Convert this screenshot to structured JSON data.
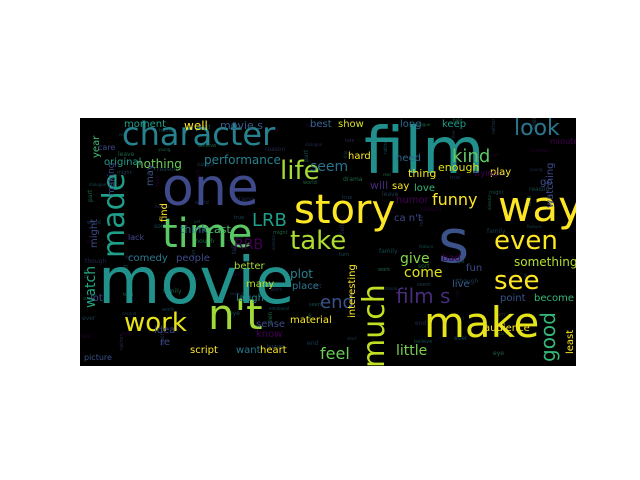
{
  "words": [
    {
      "text": "film",
      "color": "#21908c"
    },
    {
      "text": "movie",
      "color": "#21918c"
    },
    {
      "text": "one",
      "color": "#3e4a89"
    },
    {
      "text": "s",
      "color": "#3b528b"
    },
    {
      "text": "character",
      "color": "#26828e"
    },
    {
      "text": "make",
      "color": "#e5e419"
    },
    {
      "text": "story",
      "color": "#fde725"
    },
    {
      "text": "time",
      "color": "#5ac864"
    },
    {
      "text": "way",
      "color": "#fde725"
    },
    {
      "text": "work",
      "color": "#e7e419"
    },
    {
      "text": "n't",
      "color": "#a0da39"
    },
    {
      "text": "made",
      "color": "#1f9e89"
    },
    {
      "text": "much",
      "color": "#c2df23"
    },
    {
      "text": "life",
      "color": "#a5db36"
    },
    {
      "text": "take",
      "color": "#addc30"
    },
    {
      "text": "even",
      "color": "#fde725"
    },
    {
      "text": "see",
      "color": "#fde725"
    },
    {
      "text": "look",
      "color": "#2a788e"
    },
    {
      "text": "film s",
      "color": "#472c7a"
    },
    {
      "text": "kind",
      "color": "#5ec962"
    },
    {
      "text": "LRB",
      "color": "#1f9e89"
    },
    {
      "text": "RRB",
      "color": "#440154"
    },
    {
      "text": "end",
      "color": "#3b528b"
    },
    {
      "text": "good",
      "color": "#35b779"
    },
    {
      "text": "seem",
      "color": "#2c728e"
    },
    {
      "text": "funny",
      "color": "#fde725"
    },
    {
      "text": "watch",
      "color": "#22a884"
    },
    {
      "text": "feel",
      "color": "#6ccd5a"
    },
    {
      "text": "little",
      "color": "#7ad151"
    },
    {
      "text": "give",
      "color": "#84d44b"
    },
    {
      "text": "come",
      "color": "#dfe318"
    },
    {
      "text": "performance",
      "color": "#26828e"
    },
    {
      "text": "comedy",
      "color": "#2a788e"
    },
    {
      "text": "people",
      "color": "#3e4a89"
    },
    {
      "text": "well",
      "color": "#fde725"
    },
    {
      "text": "movie s",
      "color": "#365c8d"
    },
    {
      "text": "moment",
      "color": "#1fa088"
    },
    {
      "text": "nothing",
      "color": "#6ece58"
    },
    {
      "text": "show",
      "color": "#d2e21b"
    },
    {
      "text": "best",
      "color": "#31688e"
    },
    {
      "text": "year",
      "color": "#3fbc73"
    },
    {
      "text": "plot",
      "color": "#26828e"
    },
    {
      "text": "many",
      "color": "#bddf26"
    },
    {
      "text": "laugh",
      "color": "#25848e"
    },
    {
      "text": "better",
      "color": "#a2da37"
    },
    {
      "text": "cast",
      "color": "#4ac16d"
    },
    {
      "text": "think",
      "color": "#2e6f8e"
    },
    {
      "text": "thing",
      "color": "#f1e51d"
    },
    {
      "text": "love",
      "color": "#35b779"
    },
    {
      "text": "say",
      "color": "#fde725"
    },
    {
      "text": "will",
      "color": "#482878"
    },
    {
      "text": "need",
      "color": "#31688e"
    },
    {
      "text": "enough",
      "color": "#dde318"
    },
    {
      "text": "keep",
      "color": "#1f9a8a"
    },
    {
      "text": "long",
      "color": "#31688e"
    },
    {
      "text": "something",
      "color": "#b5de2b"
    },
    {
      "text": "point",
      "color": "#3b528b"
    },
    {
      "text": "become",
      "color": "#35b779"
    },
    {
      "text": "audience",
      "color": "#fde725"
    },
    {
      "text": "material",
      "color": "#fde725"
    },
    {
      "text": "sense",
      "color": "#3e4a89"
    },
    {
      "text": "heart",
      "color": "#fde725"
    },
    {
      "text": "know",
      "color": "#440154"
    },
    {
      "text": "want",
      "color": "#2a788e"
    },
    {
      "text": "script",
      "color": "#fde725"
    },
    {
      "text": "picture",
      "color": "#3b528b"
    },
    {
      "text": "find",
      "color": "#fde725"
    },
    {
      "text": "may",
      "color": "#3b528b"
    },
    {
      "text": "place",
      "color": "#2a788e"
    },
    {
      "text": "interesting",
      "color": "#fde725"
    },
    {
      "text": "idea",
      "color": "#3e4a89"
    },
    {
      "text": "fun",
      "color": "#3e4a89"
    },
    {
      "text": "bad",
      "color": "#440154"
    },
    {
      "text": "live",
      "color": "#365c8d"
    },
    {
      "text": "humor",
      "color": "#440154"
    },
    {
      "text": "original",
      "color": "#1f9e89"
    },
    {
      "text": "hard",
      "color": "#fde725"
    },
    {
      "text": "might",
      "color": "#3e4a89"
    },
    {
      "text": "watching",
      "color": "#3e4a89"
    },
    {
      "text": "minute",
      "color": "#440154"
    },
    {
      "text": "play",
      "color": "#fde725"
    },
    {
      "text": "re",
      "color": "#3e4a89"
    },
    {
      "text": "least",
      "color": "#fde725"
    },
    {
      "text": "ca n't",
      "color": "#3e4a89"
    },
    {
      "text": "lot",
      "color": "#3e4a89"
    },
    {
      "text": "trying",
      "color": "#440154"
    },
    {
      "text": "making",
      "color": "#3e4a89"
    },
    {
      "text": "care",
      "color": "#3e4a89"
    },
    {
      "text": "lack",
      "color": "#3e4a89"
    },
    {
      "text": "go",
      "color": "#3e4a89"
    }
  ]
}
